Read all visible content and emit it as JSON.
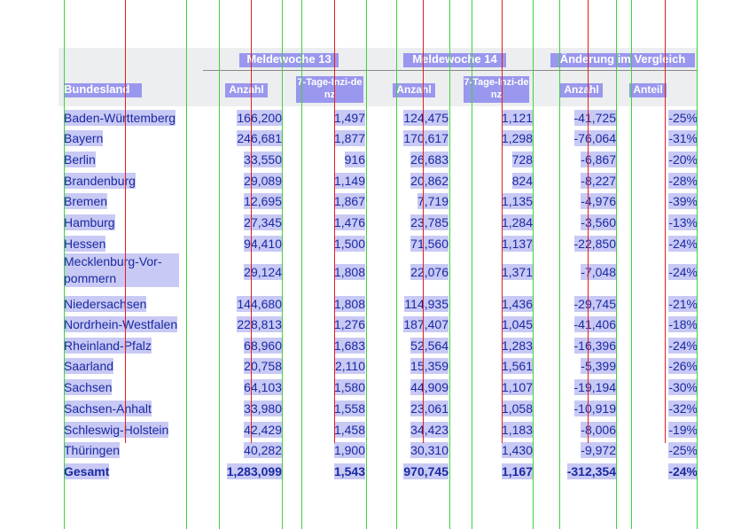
{
  "header": {
    "group1": "Meldewoche 13",
    "group2": "Meldewoche 14",
    "group3": "Änderung im Vergleich",
    "col_state": "Bundesland",
    "col_count": "Anzahl",
    "col_incidence": "7-Tage-Inzi-denz",
    "col_share": "Anteil"
  },
  "rows": [
    {
      "state": "Baden-Württemberg",
      "w13_count": "166,200",
      "w13_inc": "1,497",
      "w14_count": "124,475",
      "w14_inc": "1,121",
      "diff_count": "-41,725",
      "diff_share": "-25%"
    },
    {
      "state": "Bayern",
      "w13_count": "246,681",
      "w13_inc": "1,877",
      "w14_count": "170,617",
      "w14_inc": "1,298",
      "diff_count": "-76,064",
      "diff_share": "-31%"
    },
    {
      "state": "Berlin",
      "w13_count": "33,550",
      "w13_inc": "916",
      "w14_count": "26,683",
      "w14_inc": "728",
      "diff_count": "-6,867",
      "diff_share": "-20%"
    },
    {
      "state": "Brandenburg",
      "w13_count": "29,089",
      "w13_inc": "1,149",
      "w14_count": "20,862",
      "w14_inc": "824",
      "diff_count": "-8,227",
      "diff_share": "-28%"
    },
    {
      "state": "Bremen",
      "w13_count": "12,695",
      "w13_inc": "1,867",
      "w14_count": "7,719",
      "w14_inc": "1,135",
      "diff_count": "-4,976",
      "diff_share": "-39%"
    },
    {
      "state": "Hamburg",
      "w13_count": "27,345",
      "w13_inc": "1,476",
      "w14_count": "23,785",
      "w14_inc": "1,284",
      "diff_count": "-3,560",
      "diff_share": "-13%"
    },
    {
      "state": "Hessen",
      "w13_count": "94,410",
      "w13_inc": "1,500",
      "w14_count": "71,560",
      "w14_inc": "1,137",
      "diff_count": "-22,850",
      "diff_share": "-24%"
    },
    {
      "state": "Mecklenburg-Vor-pommern",
      "w13_count": "29,124",
      "w13_inc": "1,808",
      "w14_count": "22,076",
      "w14_inc": "1,371",
      "diff_count": "-7,048",
      "diff_share": "-24%"
    },
    {
      "state": "Niedersachsen",
      "w13_count": "144,680",
      "w13_inc": "1,808",
      "w14_count": "114,935",
      "w14_inc": "1,436",
      "diff_count": "-29,745",
      "diff_share": "-21%"
    },
    {
      "state": "Nordrhein-Westfalen",
      "w13_count": "228,813",
      "w13_inc": "1,276",
      "w14_count": "187,407",
      "w14_inc": "1,045",
      "diff_count": "-41,406",
      "diff_share": "-18%"
    },
    {
      "state": "Rheinland-Pfalz",
      "w13_count": "68,960",
      "w13_inc": "1,683",
      "w14_count": "52,564",
      "w14_inc": "1,283",
      "diff_count": "-16,396",
      "diff_share": "-24%"
    },
    {
      "state": "Saarland",
      "w13_count": "20,758",
      "w13_inc": "2,110",
      "w14_count": "15,359",
      "w14_inc": "1,561",
      "diff_count": "-5,399",
      "diff_share": "-26%"
    },
    {
      "state": "Sachsen",
      "w13_count": "64,103",
      "w13_inc": "1,580",
      "w14_count": "44,909",
      "w14_inc": "1,107",
      "diff_count": "-19,194",
      "diff_share": "-30%"
    },
    {
      "state": "Sachsen-Anhalt",
      "w13_count": "33,980",
      "w13_inc": "1,558",
      "w14_count": "23,061",
      "w14_inc": "1,058",
      "diff_count": "-10,919",
      "diff_share": "-32%"
    },
    {
      "state": "Schleswig-Holstein",
      "w13_count": "42,429",
      "w13_inc": "1,458",
      "w14_count": "34,423",
      "w14_inc": "1,183",
      "diff_count": "-8,006",
      "diff_share": "-19%"
    },
    {
      "state": "Thüringen",
      "w13_count": "40,282",
      "w13_inc": "1,900",
      "w14_count": "30,310",
      "w14_inc": "1,430",
      "diff_count": "-9,972",
      "diff_share": "-25%"
    }
  ],
  "total": {
    "state": "Gesamt",
    "w13_count": "1,283,099",
    "w13_inc": "1,543",
    "w14_count": "970,745",
    "w14_inc": "1,167",
    "diff_count": "-312,354",
    "diff_share": "-24%"
  },
  "colors": {
    "green_line": "#3cd33c",
    "red_line": "#e51c1c",
    "highlight": "#c8c9f4",
    "text": "#1b2aa2"
  }
}
